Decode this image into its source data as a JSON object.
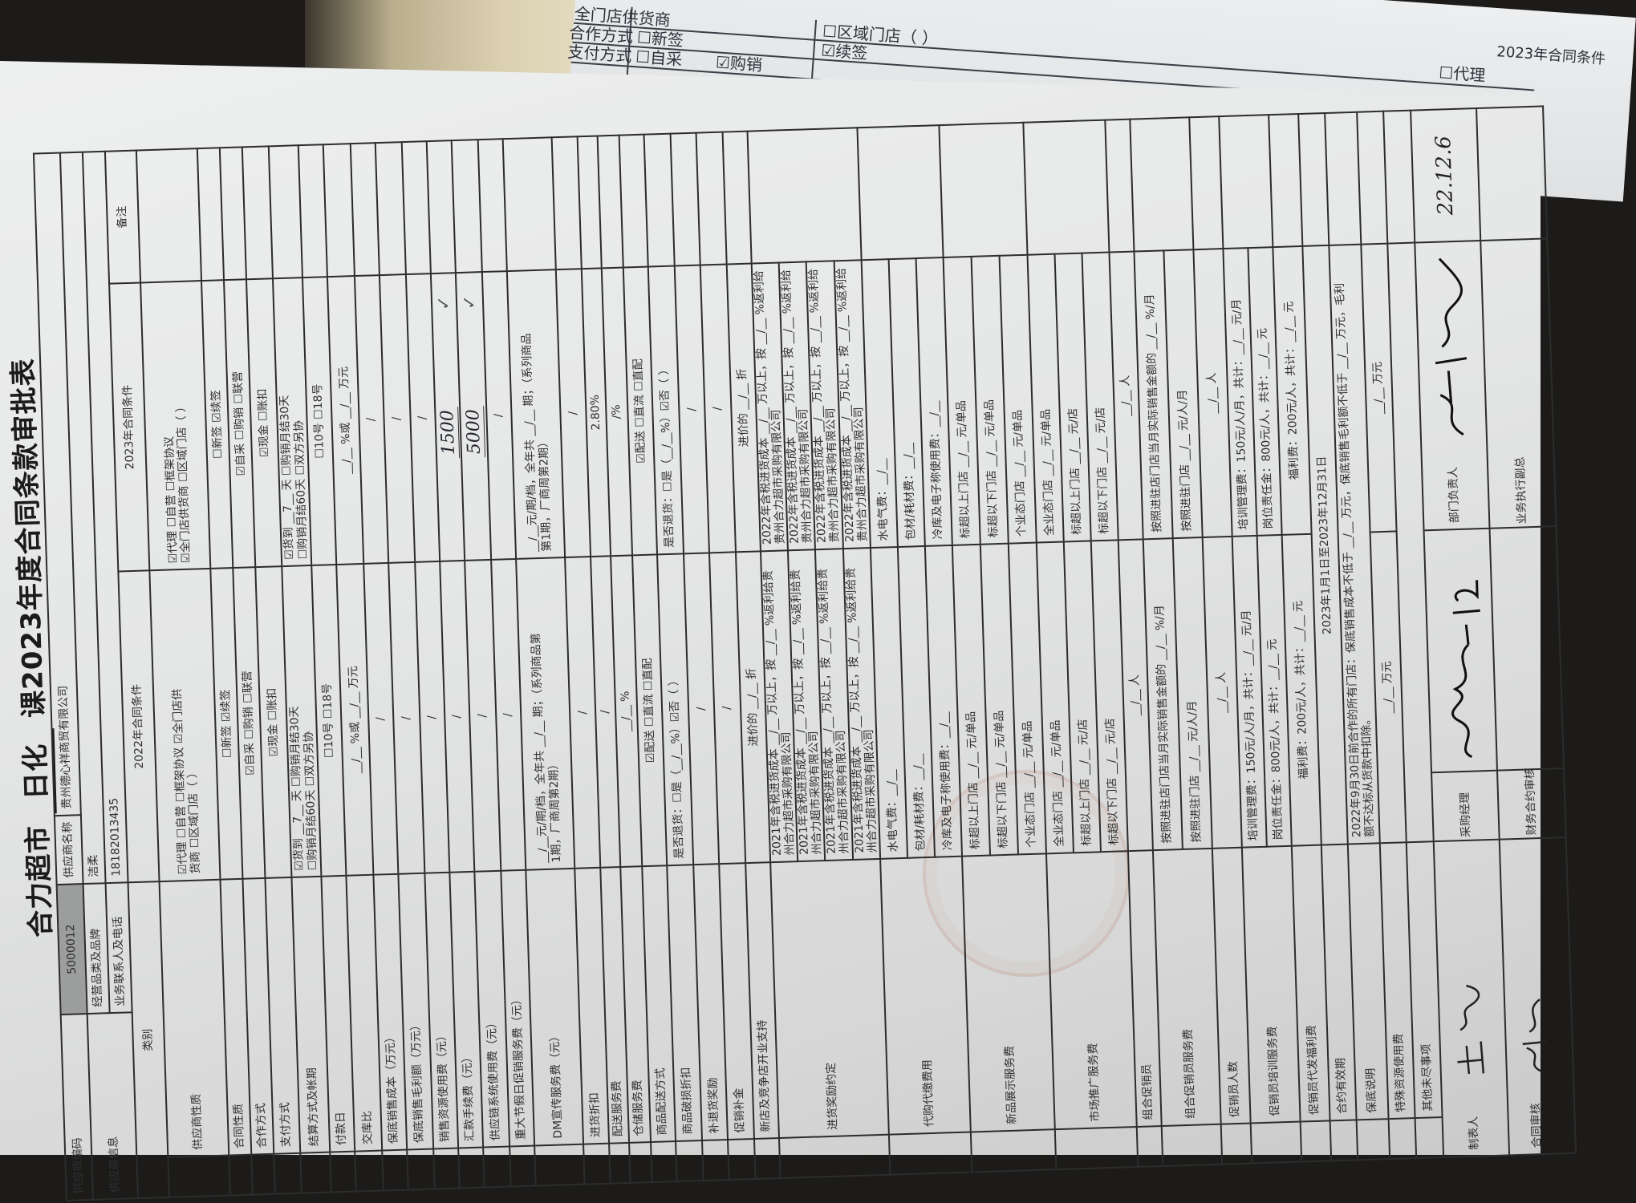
{
  "background_sheet": {
    "row1_label": "合作方式",
    "row2_label": "支付方式",
    "opt_new": "☐新签",
    "opt_renew": "☑续签",
    "opt_self": "☐自采",
    "opt_buy": "☑购销",
    "opt_region": "☐区域门店（        ）",
    "opt_store": "全门店供货商",
    "opt_agent": "☐代理",
    "col_2023": "2023年合同条件"
  },
  "title": {
    "store": "合力超市",
    "dept": "日化",
    "rest": "课2023年度合同条款审批表"
  },
  "header": {
    "supplier_code_label": "供应商编码",
    "supplier_code": "5000012",
    "supplier_name_label": "供应商名称",
    "supplier_name": "贵州德心祥商贸有限公司",
    "supplier_info_label": "供应商信息",
    "category_brand_label": "经营品类及品牌",
    "category_brand": "洁柔",
    "contact_label": "业务联系人及电话",
    "contact": "18182013435",
    "category_label": "类别",
    "col_2022": "2022年合同条件",
    "col_2023": "2023年合同条件",
    "col_remark": "备注"
  },
  "rows": [
    {
      "label": "供应商性质",
      "c2022": "☑代理   ☐自营   ☐框架协议   ☑全门店供\n货商   ☐区域门店（     ）",
      "c2023": "☑代理   ☐自营   ☐框架协议\n☑全门店供货商   ☐区域门店（     ）"
    },
    {
      "label": "合同性质",
      "c2022": "☐新签          ☑续签",
      "c2023": "☐新签          ☑续签"
    },
    {
      "label": "合作方式",
      "c2022": "☑自采     ☐购销     ☐联营",
      "c2023": "☑自采     ☐购销     ☐联营"
    },
    {
      "label": "支付方式",
      "c2022": "☑现金          ☐账扣",
      "c2023": "☑现金          ☐账扣"
    },
    {
      "label": "结算方式及帐期",
      "c2022": "☑货到 __7__ 天   ☐购销月结30天\n☐购销月结60天   ☐双方另协",
      "c2023": "☑货到 __7__ 天   ☐购销月结30天\n☐购销月结60天   ☐双方另协"
    },
    {
      "label": "付款日",
      "c2022": "☐10号          ☐18号",
      "c2023": "☐10号          ☐18号"
    },
    {
      "label": "交库比",
      "c2022": "__/__ %或 __/__ 万元",
      "c2023": "__/__ %或 __/__ 万元"
    },
    {
      "label": "保底销售成本（万元）",
      "c2022": "/",
      "c2023": "/"
    },
    {
      "label": "保底销售毛利额（万元）",
      "c2022": "/",
      "c2023": "/"
    },
    {
      "label": "销售资源使用费（元）",
      "c2022": "/",
      "c2023": "/"
    },
    {
      "label": "汇款手续费（元）",
      "c2022": "/",
      "hand_2023": "1500",
      "check_2023": "✓"
    },
    {
      "label": "供应链系统使用费（元）",
      "c2022": "/",
      "hand_2023": "5000",
      "check_2023": "✓"
    },
    {
      "label": "重大节假日促销服务费（元）",
      "c2022": "/",
      "c2023": "/"
    },
    {
      "label": "DM宣传服务费（元）",
      "c2022": "__/__元/期/档，全年共 __/__ 期；（系列商品第\n1期，厂商周第2期）",
      "c2023": "__/__元/期/档，全年共 __/__ 期；（系列商品\n第1期，厂商周第2期）"
    },
    {
      "label": "进货折扣",
      "c2022": "/",
      "c2023": "/"
    },
    {
      "label": "配送服务费",
      "c2022": "/",
      "c2023": "2.80%"
    },
    {
      "label": "仓储服务费",
      "c2022": "__/__ %",
      "c2023": "/%"
    },
    {
      "label": "商品配送方式",
      "c2022": "☑配送      ☐直流      ☐直配",
      "c2023": "☑配送      ☐直流      ☐直配"
    },
    {
      "label": "商品破损折扣",
      "c2022": "是否退货：☐是（__/__%）☑否（ ）",
      "c2023": "是否退货：☐是（__/__%）☑否（ ）"
    },
    {
      "label": "补退货奖励",
      "c2022": "/",
      "c2023": "/"
    },
    {
      "label": "促销补金",
      "c2022": "/",
      "c2023": "/"
    },
    {
      "label": "新店及竞争店开业支持",
      "c2022": "进价的 __/__ 折",
      "c2023": "进价的 __/__ 折"
    },
    {
      "label": "进货奖励约定",
      "sub_2022": [
        "2021年含税进货成本 __/__ 万以上，按 __/__ %返利给贵\n州合力超市采购有限公司",
        "2021年含税进货成本 __/__ 万以上，按 __/__ %返利给贵\n州合力超市采购有限公司",
        "2021年含税进货成本 __/__ 万以上，按 __/__ %返利给贵\n州合力超市采购有限公司",
        "2021年含税进货成本 __/__ 万以上，按 __/__ %返利给贵\n州合力超市采购有限公司"
      ],
      "sub_2023": [
        "2022年含税进货成本 __/__ 万以上，按 __/__ %返利给\n贵州合力超市采购有限公司",
        "2022年含税进货成本 __/__ 万以上，按 __/__ %返利给\n贵州合力超市采购有限公司",
        "2022年含税进货成本 __/__ 万以上，按 __/__ %返利给\n贵州合力超市采购有限公司",
        "2022年含税进货成本 __/__ 万以上，按 __/__ %返利给\n贵州合力超市采购有限公司"
      ]
    },
    {
      "label": "代购代缴费用",
      "sub_2022": [
        "水电气费：__/__",
        "包材/耗材费：__/__",
        "冷库及电子称使用费：__/__"
      ],
      "sub_2023": [
        "水电气费：__/__",
        "包材/耗材费：__/__",
        "冷库及电子称使用费：__/__"
      ]
    },
    {
      "label": "新品展示服务费",
      "sub_2022": [
        "标超以上门店 __/__ 元/单品",
        "标超以下门店 __/__ 元/单品",
        "个业态门店 __/__ 元/单品"
      ],
      "sub_2023": [
        "标超以上门店 __/__ 元/单品",
        "标超以下门店 __/__ 元/单品",
        "个业态门店 __/__ 元/单品"
      ]
    },
    {
      "label": "市场推广服务费",
      "sub_2022": [
        "全业态门店 __/__ 元/单品",
        "标超以上门店 __/__ 元/店",
        "标超以下门店 __/__ 元/店"
      ],
      "sub_2023": [
        "全业态门店 __/__ 元/单品",
        "标超以上门店 __/__ 元/店",
        "标超以下门店 __/__ 元/店"
      ]
    },
    {
      "label": "组合促销员",
      "c2022": "__/__ 人",
      "c2023": "__/__ 人"
    },
    {
      "label": "组合促销员服务费",
      "sub_2022": [
        "按照进驻店门店当月实际销售金额的 __/__ %/月",
        "按照进驻门店 __/__ 元/人/月"
      ],
      "sub_2023": [
        "按照进驻店门店当月实际销售金额的 __/__ %/月",
        "按照进驻门店 __/__ 元/人/月"
      ]
    },
    {
      "label": "促销员人数",
      "c2022": "__/__ 人",
      "c2023": "__/__ 人"
    },
    {
      "label": "促销员培训服务费",
      "sub_2022": [
        "培训管理费：150元/人/月，共计：__/__ 元/月",
        "岗位责任金：800元/人，共计：__/__ 元"
      ],
      "sub_2023": [
        "培训管理费：150元/人/月，共计：__/__ 元/月",
        "岗位责任金：800元/人，共计：__/__ 元"
      ]
    },
    {
      "label": "促销员代发福利费",
      "c2022": "福利费：200元/人，共计：__/__ 元",
      "c2023": "福利费：200元/人，共计：__/__ 元"
    },
    {
      "label": "合约有效期",
      "merged": "2023年1月1日至2023年12月31日"
    },
    {
      "label": "保底说明",
      "merged": "2022年9月30日前合作的所有门店：保底销售成本不低于 __/__ 万元，保底销售毛利额不低于 __/__ 万元，毛利\n额不达标从货款中扣除。"
    },
    {
      "label": "特殊资源使用费",
      "c2022": "__/__ 万元",
      "c2023": "__/__ 万元"
    },
    {
      "label": "其他未尽事项",
      "merged": ""
    }
  ],
  "signoff": {
    "maker_label": "制表人",
    "purchase_manager_label": "采购经理",
    "dept_head_label": "部门负责人",
    "dept_head_date": "22.12.6",
    "contract_review_label": "合同审核",
    "finance_review_label": "财务合约审核",
    "vp_label": "业务执行副总"
  },
  "colors": {
    "ink": "#2f2f30",
    "paper": "#e6e7e7",
    "shaded_cell": "#9c9d9d",
    "stamp": "#b97864"
  }
}
